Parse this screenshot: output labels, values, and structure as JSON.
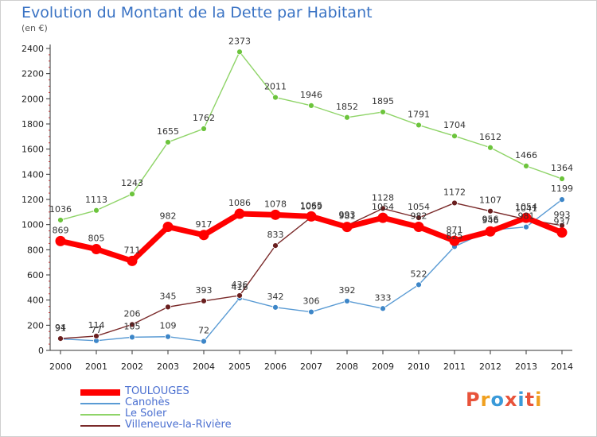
{
  "title": "Evolution du Montant de la Dette par Habitant",
  "unit": "(en €)",
  "logo_text": "Proxiti",
  "logo_colors": [
    "#e8533a",
    "#f0a020",
    "#3a9ad9",
    "#e8533a",
    "#3a9ad9",
    "#e8533a",
    "#f0a020"
  ],
  "chart_data": {
    "type": "line",
    "x": [
      "2000",
      "2001",
      "2002",
      "2003",
      "2004",
      "2005",
      "2006",
      "2007",
      "2008",
      "2009",
      "2010",
      "2011",
      "2012",
      "2013",
      "2014"
    ],
    "ylim": [
      0,
      2400
    ],
    "yticks": [
      0,
      200,
      400,
      600,
      800,
      1000,
      1200,
      1400,
      1600,
      1800,
      2000,
      2200,
      2400
    ],
    "grid": false,
    "legend": "bottom-left",
    "series": [
      {
        "name": "Le Soler",
        "color": "#8fd468",
        "marker": "#6cc43c",
        "values": [
          1036,
          1113,
          1243,
          1655,
          1762,
          2373,
          2011,
          1946,
          1852,
          1895,
          1791,
          1704,
          1612,
          1466,
          1364
        ]
      },
      {
        "name": "Canohès",
        "color": "#5a9bd4",
        "marker": "#3d86c8",
        "values": [
          91,
          77,
          105,
          109,
          72,
          416,
          342,
          306,
          392,
          333,
          522,
          825,
          956,
          981,
          1199
        ]
      },
      {
        "name": "Villeneuve-la-Rivière",
        "color": "#7a2a2a",
        "marker": "#6a1f1f",
        "values": [
          94,
          114,
          206,
          345,
          393,
          436,
          833,
          1059,
          993,
          1128,
          1054,
          1172,
          1107,
          1041,
          993
        ]
      },
      {
        "name": "TOULOUGES",
        "color": "#ff0000",
        "marker": "#ff0000",
        "values": [
          869,
          805,
          711,
          982,
          917,
          1086,
          1078,
          1065,
          981,
          1054,
          982,
          871,
          946,
          1054,
          937
        ]
      }
    ],
    "legend_order": [
      "TOULOUGES",
      "Canohès",
      "Le Soler",
      "Villeneuve-la-Rivière"
    ]
  }
}
